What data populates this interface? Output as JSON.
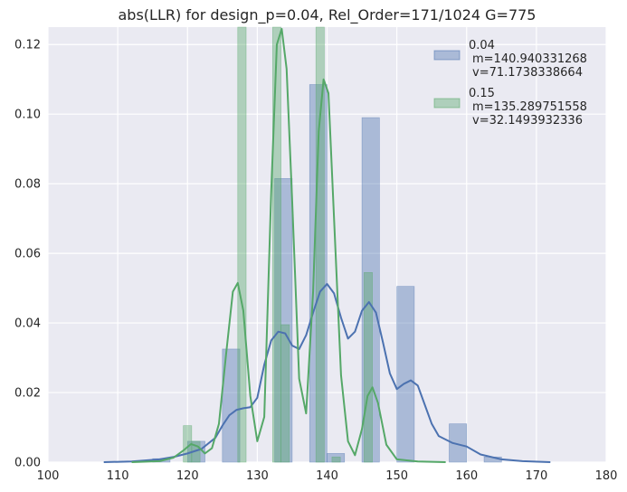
{
  "chart_data": {
    "type": "histogram+kde",
    "title": "abs(LLR) for design_p=0.04, Rel_Order=171/1024 G=775",
    "xlabel": "",
    "ylabel": "",
    "xlim": [
      100,
      180
    ],
    "ylim": [
      0,
      0.125
    ],
    "xticks": [
      "100",
      "110",
      "120",
      "130",
      "140",
      "150",
      "160",
      "170",
      "180"
    ],
    "yticks": [
      "0.00",
      "0.02",
      "0.04",
      "0.06",
      "0.08",
      "0.10",
      "0.12"
    ],
    "grid": true,
    "legend_position": "top-right",
    "series": [
      {
        "name": "0.04",
        "legend_lines": [
          "0.04",
          "m=140.940331268",
          "v=71.1738338664"
        ],
        "color": "#4c72b0",
        "bin_width": 2.5,
        "bins": [
          {
            "x0": 115,
            "h": 0.001
          },
          {
            "x0": 120,
            "h": 0.006
          },
          {
            "x0": 125,
            "h": 0.0325
          },
          {
            "x0": 132.5,
            "h": 0.0815
          },
          {
            "x0": 137.5,
            "h": 0.1085
          },
          {
            "x0": 140,
            "h": 0.0025
          },
          {
            "x0": 145,
            "h": 0.099
          },
          {
            "x0": 150,
            "h": 0.0505
          },
          {
            "x0": 157.5,
            "h": 0.011
          },
          {
            "x0": 162.5,
            "h": 0.0015
          }
        ],
        "kde": [
          [
            108,
            0
          ],
          [
            112,
            0.0002
          ],
          [
            116,
            0.0008
          ],
          [
            118,
            0.0015
          ],
          [
            120,
            0.0025
          ],
          [
            122,
            0.0038
          ],
          [
            124,
            0.007
          ],
          [
            125,
            0.0105
          ],
          [
            126,
            0.0135
          ],
          [
            127,
            0.015
          ],
          [
            128,
            0.0155
          ],
          [
            129,
            0.0158
          ],
          [
            130,
            0.0185
          ],
          [
            131,
            0.028
          ],
          [
            132,
            0.035
          ],
          [
            133,
            0.0375
          ],
          [
            134,
            0.037
          ],
          [
            135,
            0.0335
          ],
          [
            136,
            0.0325
          ],
          [
            137,
            0.0365
          ],
          [
            138,
            0.043
          ],
          [
            139,
            0.049
          ],
          [
            140,
            0.0512
          ],
          [
            141,
            0.0485
          ],
          [
            142,
            0.0415
          ],
          [
            143,
            0.0355
          ],
          [
            144,
            0.0375
          ],
          [
            145,
            0.0435
          ],
          [
            146,
            0.046
          ],
          [
            147,
            0.043
          ],
          [
            148,
            0.0345
          ],
          [
            149,
            0.0255
          ],
          [
            150,
            0.021
          ],
          [
            151,
            0.0225
          ],
          [
            152,
            0.0235
          ],
          [
            153,
            0.022
          ],
          [
            154,
            0.0165
          ],
          [
            155,
            0.011
          ],
          [
            156,
            0.0075
          ],
          [
            158,
            0.0055
          ],
          [
            160,
            0.0045
          ],
          [
            162,
            0.0022
          ],
          [
            165,
            0.0008
          ],
          [
            168,
            0.0003
          ],
          [
            172,
            0
          ]
        ]
      },
      {
        "name": "0.15",
        "legend_lines": [
          "0.15",
          "m=135.289751558",
          "v=32.1493932336"
        ],
        "color": "#55a868",
        "bin_width": 1.2,
        "bins": [
          {
            "x0": 119.4,
            "h": 0.0105
          },
          {
            "x0": 120.6,
            "h": 0.006
          },
          {
            "x0": 127.2,
            "h": 0.125
          },
          {
            "x0": 132.2,
            "h": 0.125
          },
          {
            "x0": 133.4,
            "h": 0.0395
          },
          {
            "x0": 138.4,
            "h": 0.125
          },
          {
            "x0": 140.7,
            "h": 0.0015
          },
          {
            "x0": 145.3,
            "h": 0.0545
          }
        ],
        "kde": [
          [
            112,
            0
          ],
          [
            116,
            0.0003
          ],
          [
            118,
            0.0013
          ],
          [
            119.5,
            0.0035
          ],
          [
            120.5,
            0.0052
          ],
          [
            121.5,
            0.0045
          ],
          [
            122.5,
            0.0025
          ],
          [
            123.5,
            0.004
          ],
          [
            124.5,
            0.011
          ],
          [
            125.5,
            0.0305
          ],
          [
            126.5,
            0.049
          ],
          [
            127.2,
            0.0515
          ],
          [
            128,
            0.0435
          ],
          [
            129,
            0.019
          ],
          [
            130,
            0.006
          ],
          [
            131,
            0.013
          ],
          [
            132,
            0.078
          ],
          [
            132.8,
            0.12
          ],
          [
            133.5,
            0.1245
          ],
          [
            134.2,
            0.113
          ],
          [
            135,
            0.075
          ],
          [
            136,
            0.024
          ],
          [
            137,
            0.014
          ],
          [
            138,
            0.049
          ],
          [
            138.8,
            0.095
          ],
          [
            139.5,
            0.11
          ],
          [
            140.2,
            0.106
          ],
          [
            141,
            0.07
          ],
          [
            142,
            0.025
          ],
          [
            143,
            0.006
          ],
          [
            144,
            0.002
          ],
          [
            145,
            0.0095
          ],
          [
            145.8,
            0.019
          ],
          [
            146.5,
            0.0215
          ],
          [
            147.3,
            0.017
          ],
          [
            148.5,
            0.005
          ],
          [
            150,
            0.0008
          ],
          [
            153,
            0.0002
          ],
          [
            157,
            0
          ]
        ]
      }
    ]
  }
}
